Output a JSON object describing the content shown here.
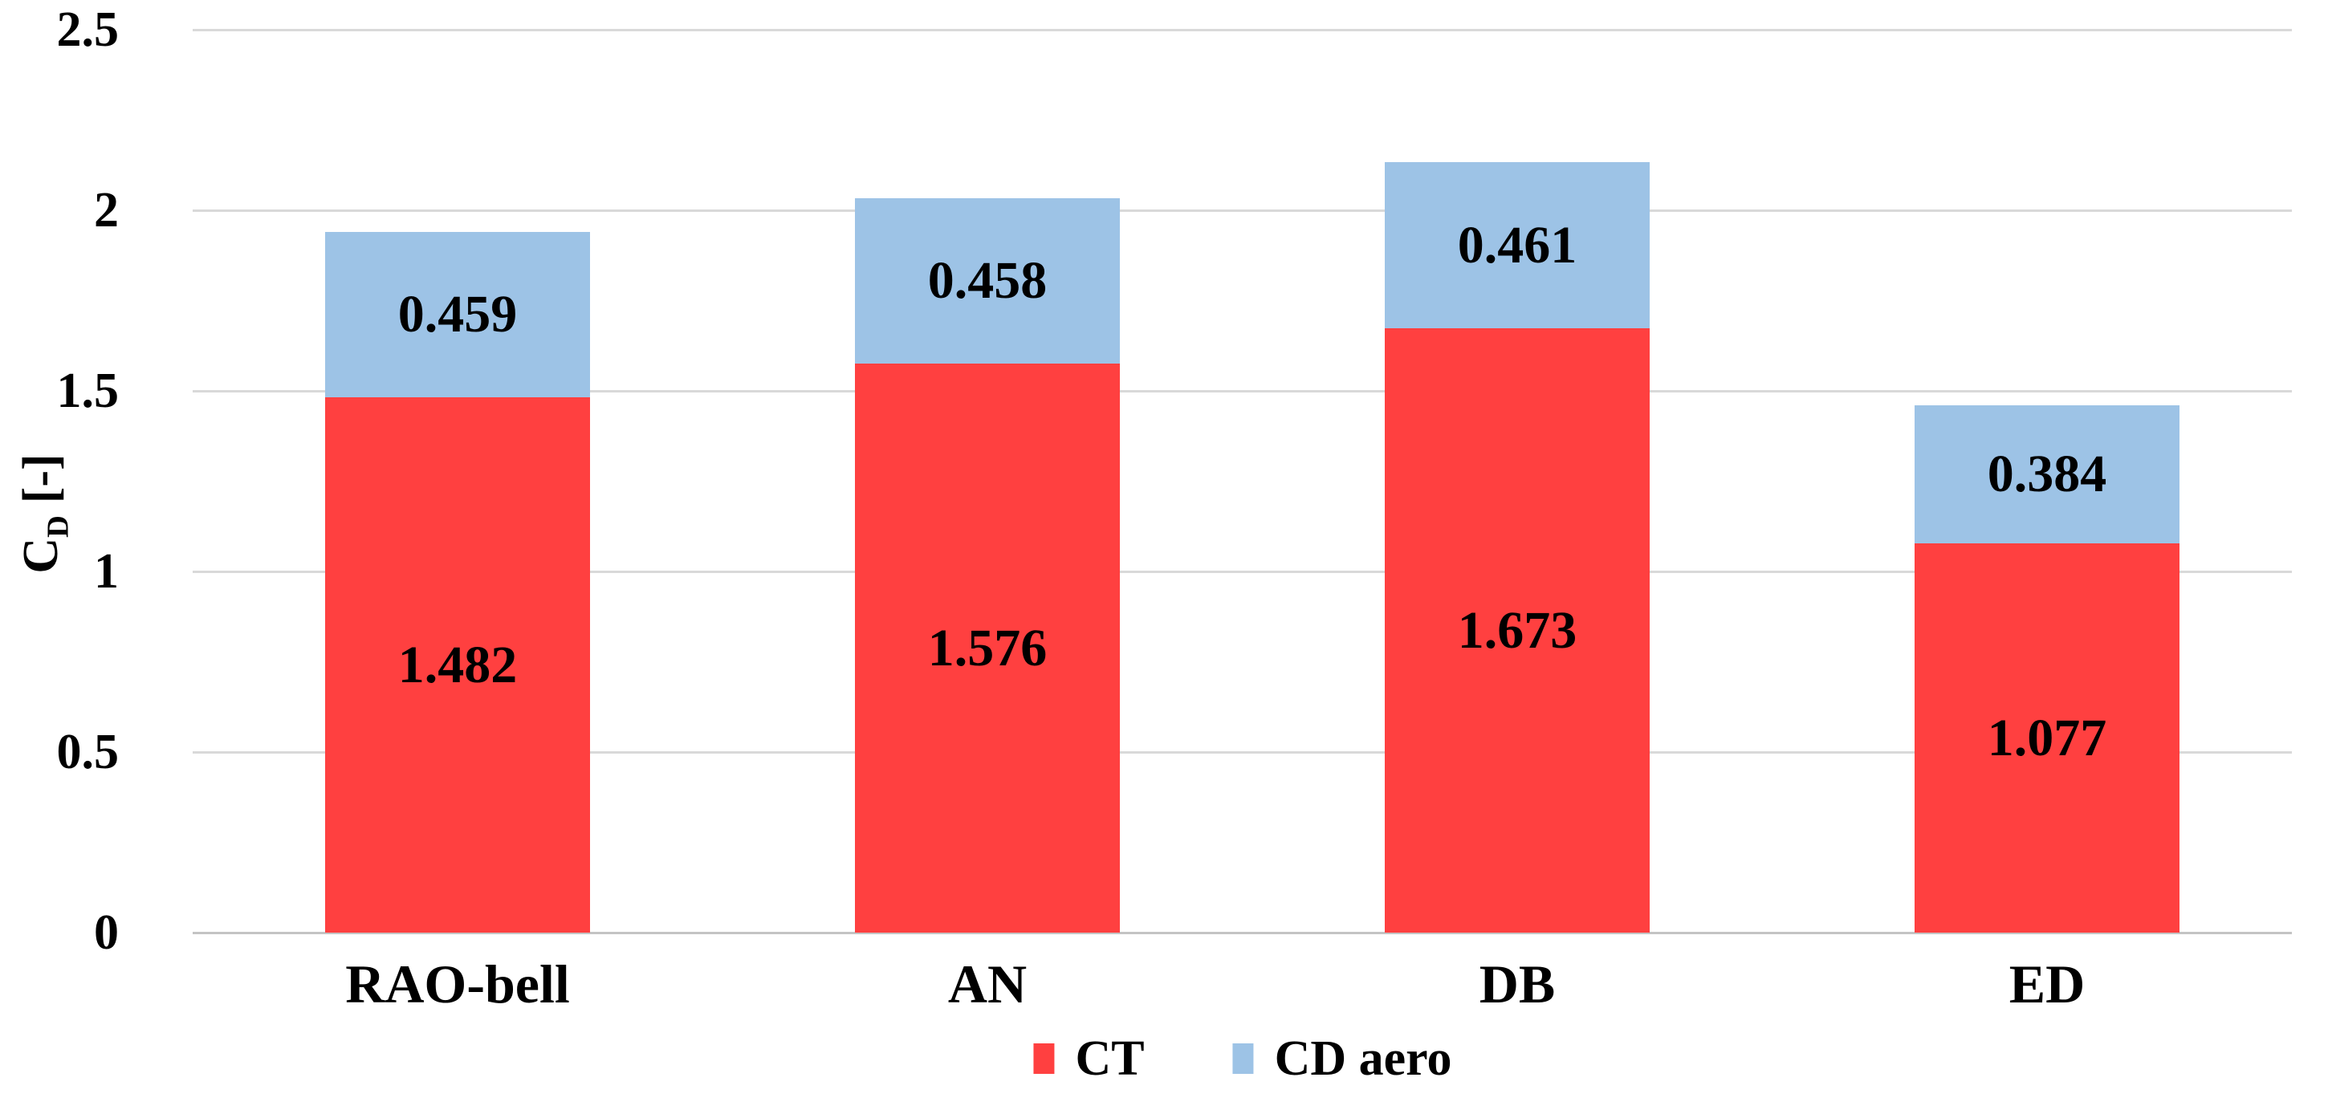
{
  "chart_data": {
    "type": "bar",
    "stacked": true,
    "categories": [
      "RAO-bell",
      "AN",
      "DB",
      "ED"
    ],
    "series": [
      {
        "name": "CT",
        "color": "#FF4040",
        "values": [
          1.482,
          1.576,
          1.673,
          1.077
        ]
      },
      {
        "name": "CD aero",
        "color": "#9DC3E6",
        "values": [
          0.459,
          0.458,
          0.461,
          0.384
        ]
      }
    ],
    "value_decimals": 3,
    "ylabel_main": "C",
    "ylabel_sub": "D",
    "ylabel_unit": "[-]",
    "ylim": [
      0,
      2.5
    ],
    "yticks": [
      0,
      0.5,
      1,
      1.5,
      2,
      2.5
    ],
    "ytick_labels": [
      "0",
      "0.5",
      "1",
      "1.5",
      "2",
      "2.5"
    ],
    "grid": true,
    "legend_position": "bottom"
  },
  "colors": {
    "ct": "#FF4040",
    "cd_aero": "#9DC3E6",
    "gridline": "#D9D9D9",
    "baseline": "#C4C4C4",
    "text": "#000000",
    "background": "#FFFFFF"
  }
}
